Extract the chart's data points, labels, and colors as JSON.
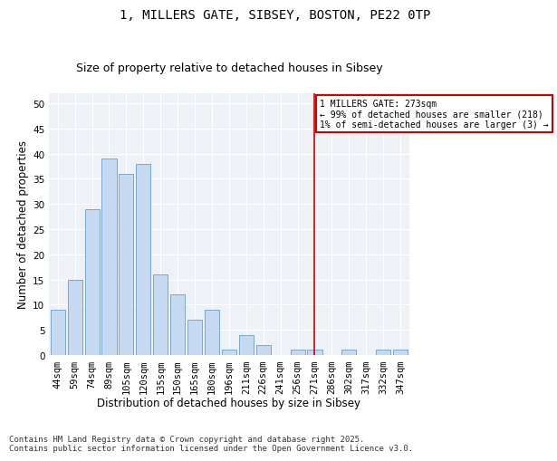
{
  "title1": "1, MILLERS GATE, SIBSEY, BOSTON, PE22 0TP",
  "title2": "Size of property relative to detached houses in Sibsey",
  "xlabel": "Distribution of detached houses by size in Sibsey",
  "ylabel": "Number of detached properties",
  "categories": [
    "44sqm",
    "59sqm",
    "74sqm",
    "89sqm",
    "105sqm",
    "120sqm",
    "135sqm",
    "150sqm",
    "165sqm",
    "180sqm",
    "196sqm",
    "211sqm",
    "226sqm",
    "241sqm",
    "256sqm",
    "271sqm",
    "286sqm",
    "302sqm",
    "317sqm",
    "332sqm",
    "347sqm"
  ],
  "values": [
    9,
    15,
    29,
    39,
    36,
    38,
    16,
    12,
    7,
    9,
    1,
    4,
    2,
    0,
    1,
    1,
    0,
    1,
    0,
    1,
    1
  ],
  "bar_color": "#c5d9f0",
  "bar_edge_color": "#7aa8d4",
  "vline_x": 15,
  "vline_color": "#cc0000",
  "annotation_title": "1 MILLERS GATE: 273sqm",
  "annotation_line1": "← 99% of detached houses are smaller (218)",
  "annotation_line2": "1% of semi-detached houses are larger (3) →",
  "annotation_box_color": "#cc0000",
  "ylim": [
    0,
    52
  ],
  "yticks": [
    0,
    5,
    10,
    15,
    20,
    25,
    30,
    35,
    40,
    45,
    50
  ],
  "background_color": "#eef2f7",
  "footer": "Contains HM Land Registry data © Crown copyright and database right 2025.\nContains public sector information licensed under the Open Government Licence v3.0.",
  "title_fontsize": 10,
  "subtitle_fontsize": 9,
  "axis_label_fontsize": 8.5,
  "tick_fontsize": 7.5,
  "footer_fontsize": 6.5
}
